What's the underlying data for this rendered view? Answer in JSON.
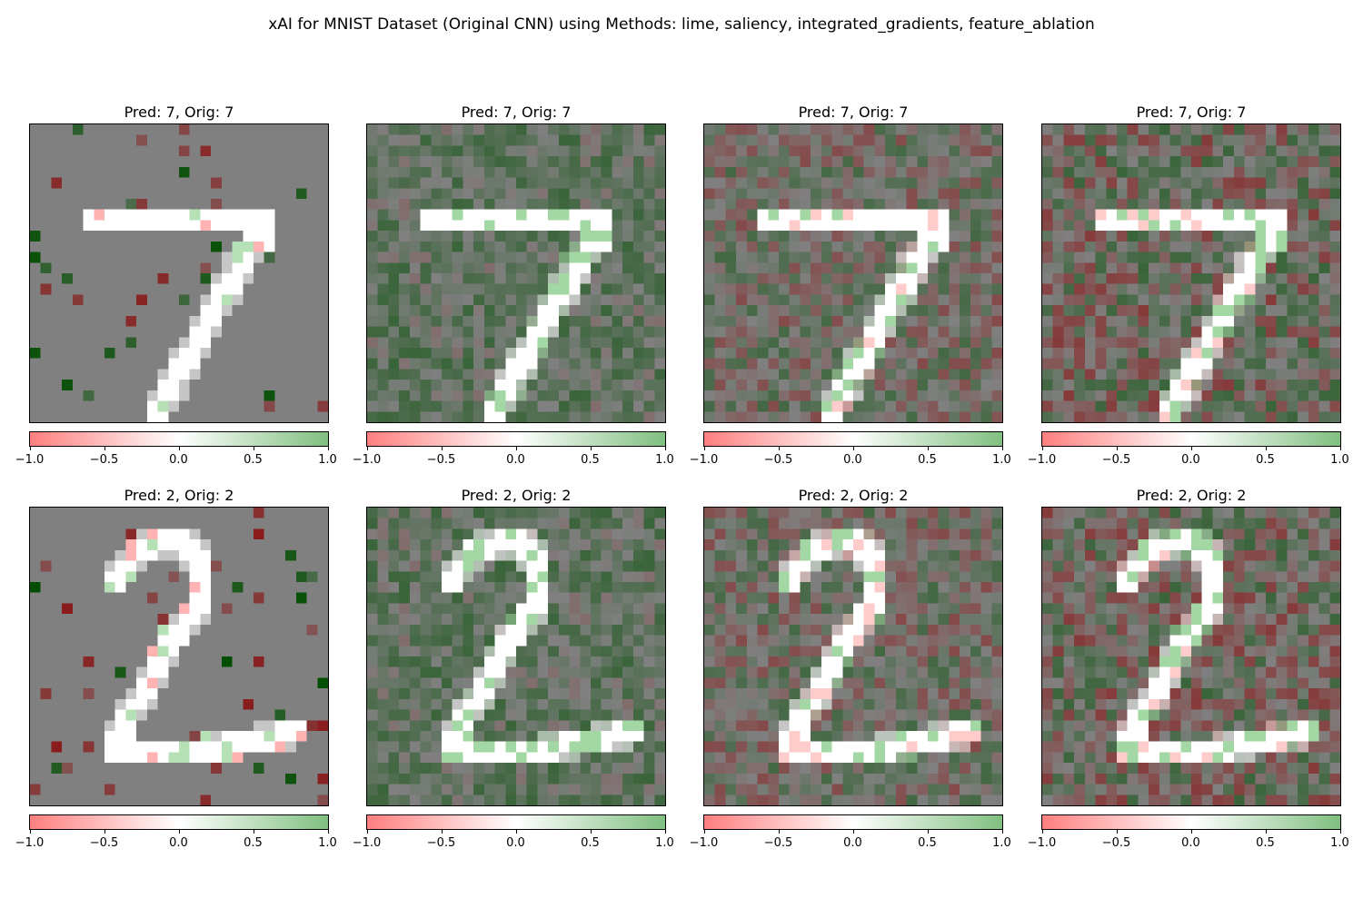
{
  "figure": {
    "title": "xAI for MNIST Dataset (Original CNN) using Methods: lime, saliency, integrated_gradients, feature_ablation"
  },
  "chart_data": {
    "type": "heatmap",
    "title": "xAI for MNIST Dataset (Original CNN) using Methods: lime, saliency, integrated_gradients, feature_ablation",
    "methods": [
      "lime",
      "saliency",
      "integrated_gradients",
      "feature_ablation"
    ],
    "grid_size": [
      28,
      28
    ],
    "colorbar": {
      "range": [
        -1.0,
        1.0
      ],
      "ticks": [
        -1.0,
        -0.5,
        0.0,
        0.5,
        1.0
      ],
      "tick_labels": [
        "−1.0",
        "−0.5",
        "0.0",
        "0.5",
        "1.0"
      ],
      "colors": {
        "negative": "#ff7f7f",
        "zero": "#ffffff",
        "positive": "#80bf80"
      }
    },
    "heatmap_colors": {
      "background": "#808080",
      "positive_dark": "#004d00",
      "negative_dark": "#8b0000",
      "digit": "#ffffff"
    },
    "rows": [
      {
        "digit": 7,
        "prediction": 7,
        "original": 7,
        "panels": [
          {
            "method": "lime",
            "title": "Pred: 7, Orig: 7"
          },
          {
            "method": "saliency",
            "title": "Pred: 7, Orig: 7"
          },
          {
            "method": "integrated_gradients",
            "title": "Pred: 7, Orig: 7"
          },
          {
            "method": "feature_ablation",
            "title": "Pred: 7, Orig: 7"
          }
        ]
      },
      {
        "digit": 2,
        "prediction": 2,
        "original": 2,
        "panels": [
          {
            "method": "lime",
            "title": "Pred: 2, Orig: 2"
          },
          {
            "method": "saliency",
            "title": "Pred: 2, Orig: 2"
          },
          {
            "method": "integrated_gradients",
            "title": "Pred: 2, Orig: 2"
          },
          {
            "method": "feature_ablation",
            "title": "Pred: 2, Orig: 2"
          }
        ]
      }
    ]
  }
}
